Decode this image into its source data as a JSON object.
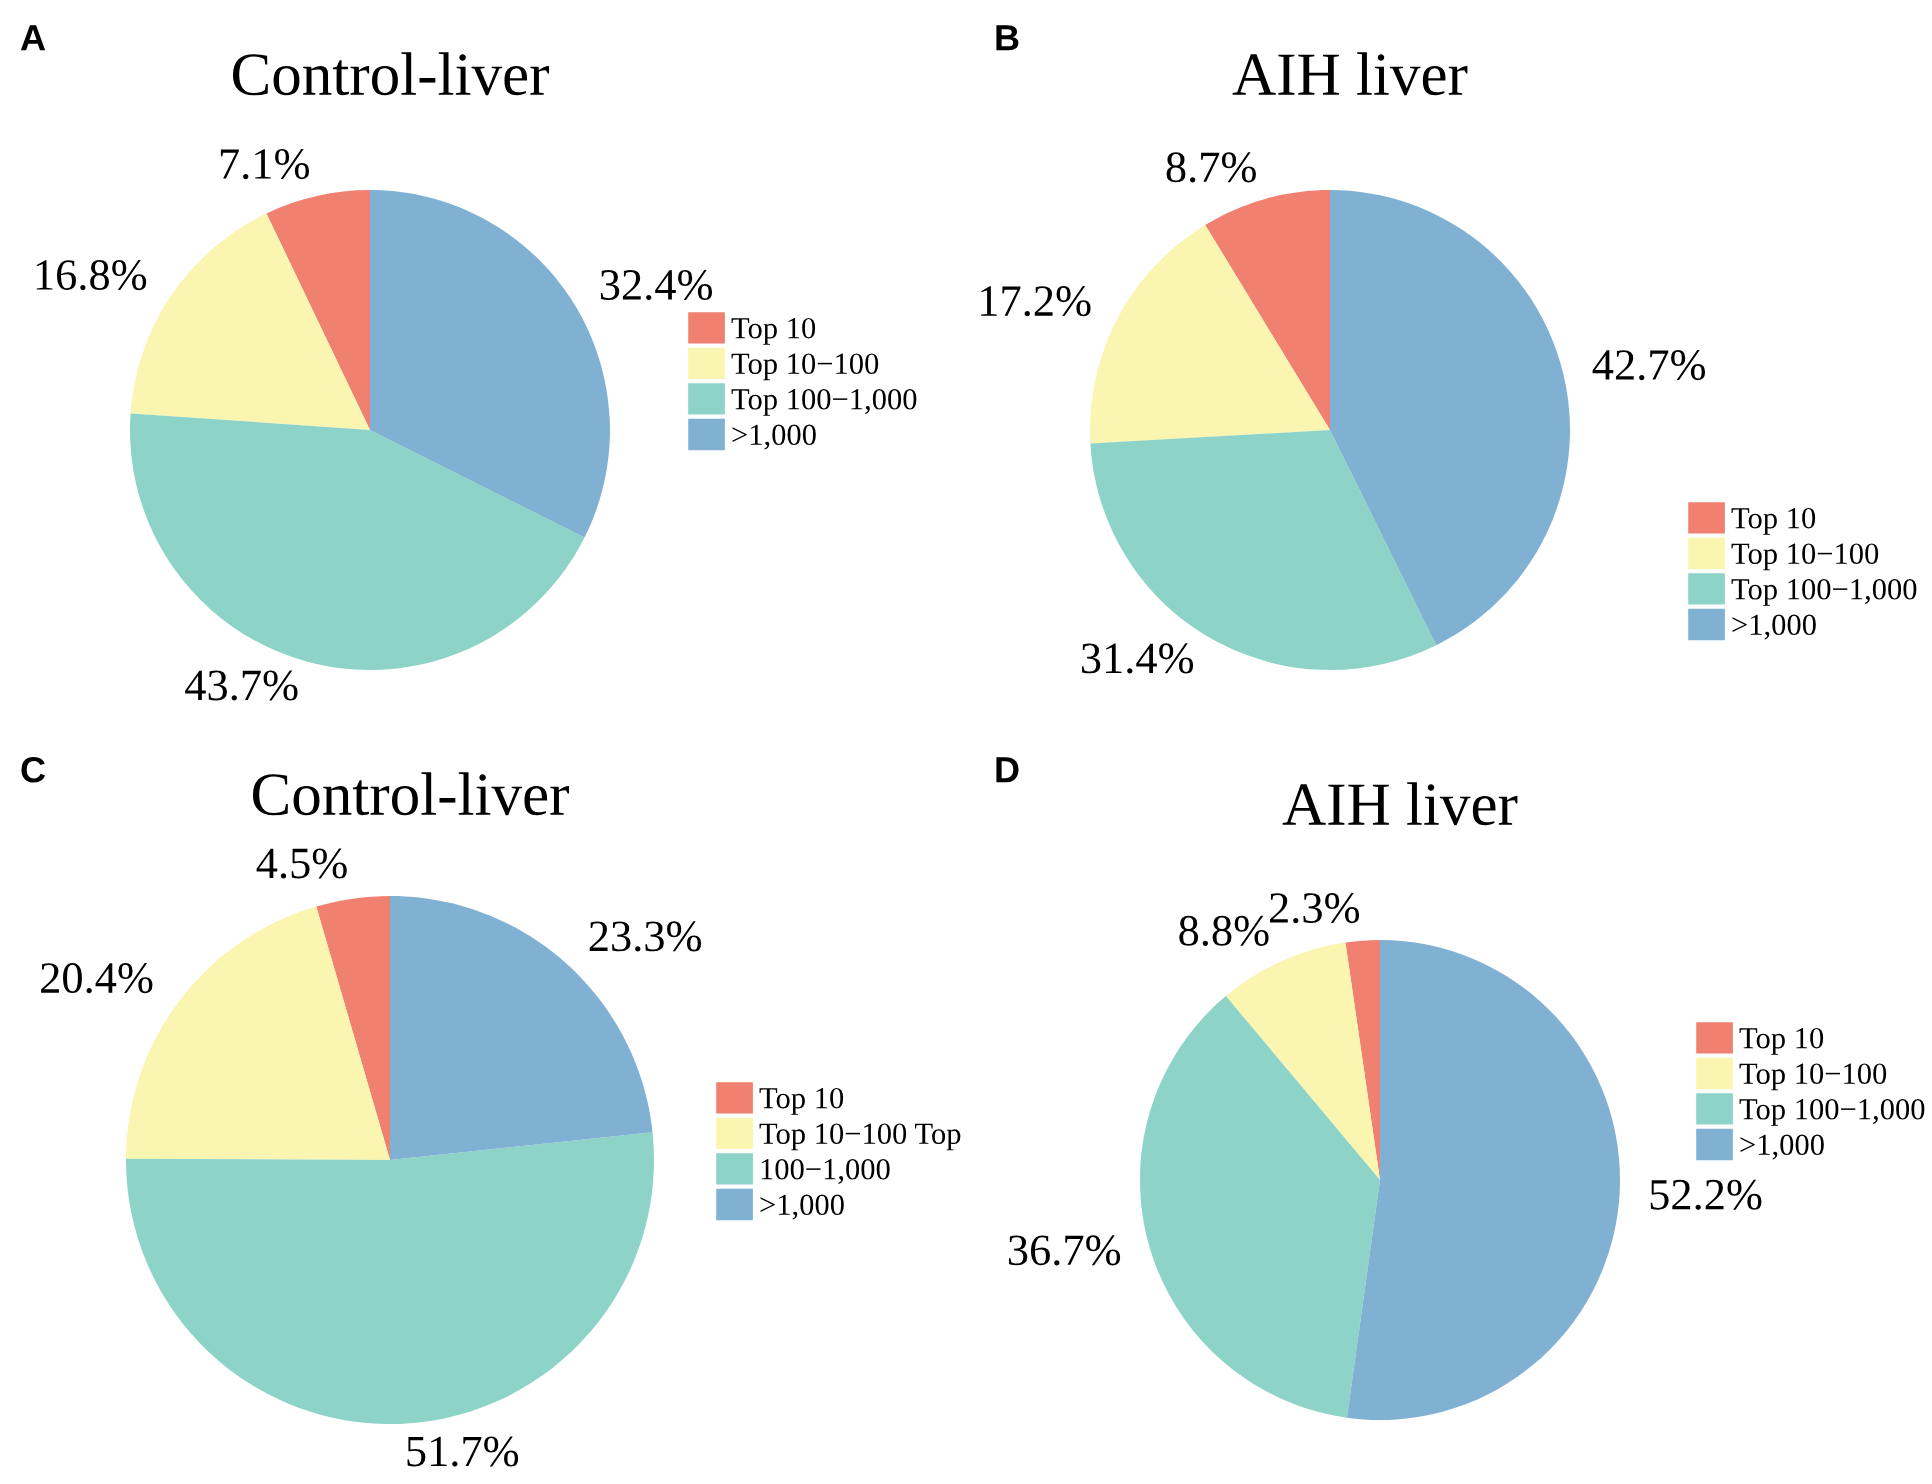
{
  "chart_data": [
    {
      "type": "pie",
      "title": "Control-liver",
      "annotations": [
        "A"
      ],
      "categories": [
        "Top 10",
        "Top 10−100",
        "Top 100−1,000",
        ">1,000"
      ],
      "values": [
        7.1,
        16.8,
        43.7,
        32.4
      ],
      "value_labels": [
        "7.1%",
        "16.8%",
        "43.7%",
        "32.4%"
      ],
      "colors": [
        "#f08070",
        "#faf5b0",
        "#8dd3c7",
        "#80b1d3"
      ],
      "legend": "right"
    },
    {
      "type": "pie",
      "title": "AIH liver",
      "annotations": [
        "B"
      ],
      "categories": [
        "Top 10",
        "Top 10−100",
        "Top 100−1,000",
        ">1,000"
      ],
      "values": [
        8.7,
        17.2,
        31.4,
        42.7
      ],
      "value_labels": [
        "8.7%",
        "17.2%",
        "31.4%",
        "42.7%"
      ],
      "colors": [
        "#f08070",
        "#faf5b0",
        "#8dd3c7",
        "#80b1d3"
      ],
      "legend": "right"
    },
    {
      "type": "pie",
      "title": "Control-liver",
      "annotations": [
        "C"
      ],
      "categories": [
        "Top 10",
        "Top 10−100 Top",
        "100−1,000",
        ">1,000"
      ],
      "values": [
        4.5,
        20.4,
        51.7,
        23.3
      ],
      "value_labels": [
        "4.5%",
        "20.4%",
        "51.7%",
        "23.3%"
      ],
      "colors": [
        "#f08070",
        "#faf5b0",
        "#8dd3c7",
        "#80b1d3"
      ],
      "legend": "right"
    },
    {
      "type": "pie",
      "title": "AIH liver",
      "annotations": [
        "D"
      ],
      "categories": [
        "Top 10",
        "Top 10−100",
        "Top 100−1,000",
        ">1,000"
      ],
      "values": [
        2.3,
        8.8,
        36.7,
        52.2
      ],
      "value_labels": [
        "2.3%",
        "8.8%",
        "36.7%",
        "52.2%"
      ],
      "colors": [
        "#f08070",
        "#faf5b0",
        "#8dd3c7",
        "#80b1d3"
      ],
      "legend": "right"
    }
  ]
}
